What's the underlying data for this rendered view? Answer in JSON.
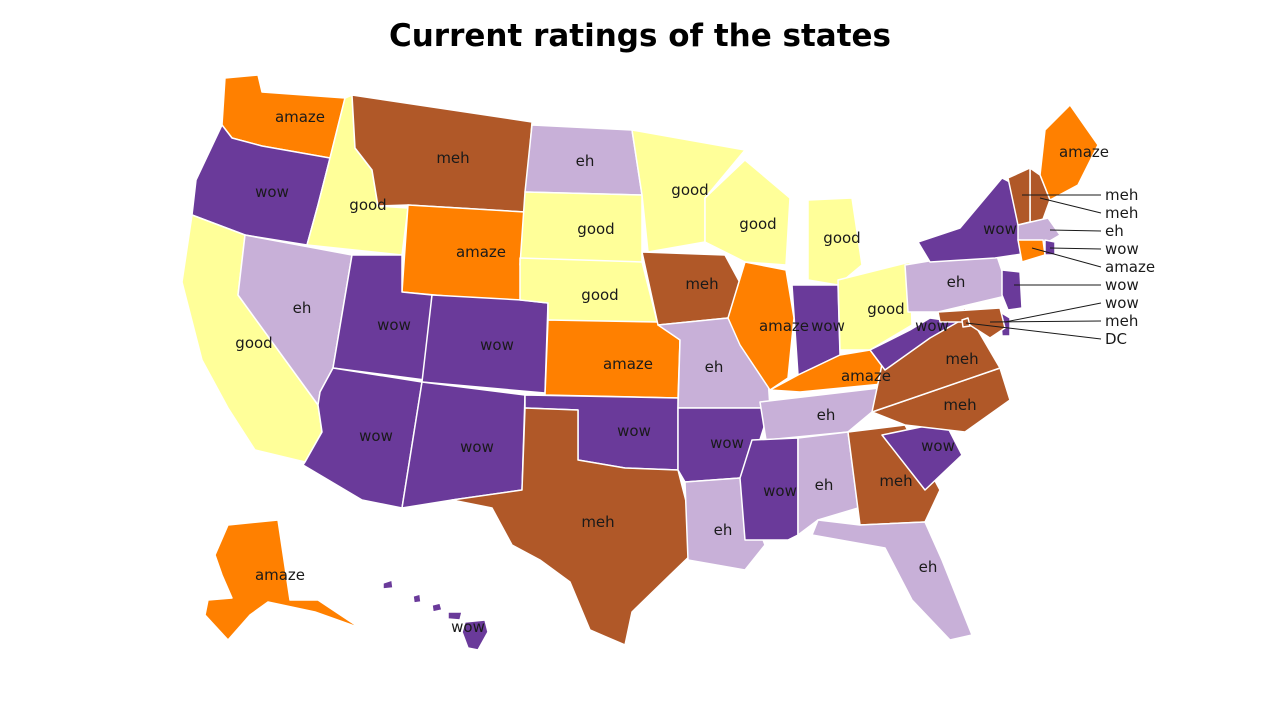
{
  "title": "Current ratings of the states",
  "colors": {
    "amaze": "#ff8000",
    "meh": "#b05828",
    "eh": "#c8b0d8",
    "good": "#ffff99",
    "wow": "#6a3a9a"
  },
  "states": {
    "WA": "amaze",
    "OR": "wow",
    "CA": "good",
    "ID": "good",
    "NV": "eh",
    "MT": "meh",
    "WY": "amaze",
    "UT": "wow",
    "CO": "wow",
    "AZ": "wow",
    "NM": "wow",
    "ND": "eh",
    "SD": "good",
    "NE": "good",
    "KS": "amaze",
    "OK": "wow",
    "TX": "meh",
    "MN": "good",
    "IA": "meh",
    "MO": "eh",
    "AR": "wow",
    "LA": "eh",
    "WI": "good",
    "IL": "amaze",
    "MI": "good",
    "IN": "wow",
    "OH": "good",
    "KY": "amaze",
    "TN": "eh",
    "MS": "wow",
    "AL": "eh",
    "GA": "meh",
    "FL": "eh",
    "SC": "wow",
    "NC": "meh",
    "VA": "meh",
    "WV": "wow",
    "PA": "eh",
    "NY": "wow",
    "ME": "amaze",
    "AK": "amaze",
    "HI": "wow",
    "VT": "meh",
    "NH": "meh",
    "MA": "eh",
    "RI": "wow",
    "CT": "amaze",
    "NJ": "wow",
    "DE": "wow",
    "MD": "meh",
    "DC": "DC"
  },
  "callouts": [
    {
      "state": "VT",
      "text": "meh"
    },
    {
      "state": "NH",
      "text": "meh"
    },
    {
      "state": "MA",
      "text": "eh"
    },
    {
      "state": "RI",
      "text": "wow"
    },
    {
      "state": "CT",
      "text": "amaze"
    },
    {
      "state": "NJ",
      "text": "wow"
    },
    {
      "state": "DE",
      "text": "wow"
    },
    {
      "state": "MD",
      "text": "meh"
    },
    {
      "state": "DC",
      "text": "DC"
    }
  ]
}
